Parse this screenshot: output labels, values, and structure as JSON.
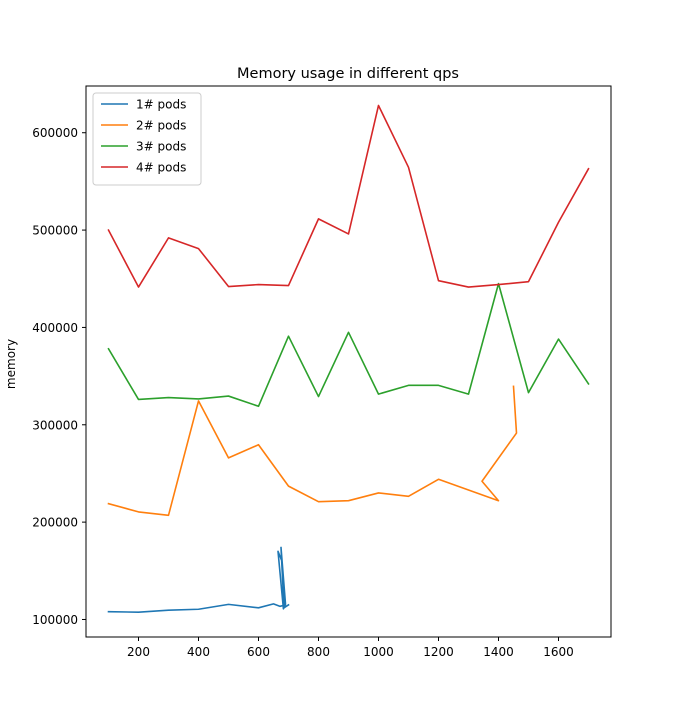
{
  "chart_data": {
    "type": "line",
    "title": "Memory usage in different qps",
    "xlabel": "",
    "ylabel": "memory",
    "xlim": [
      25,
      1775
    ],
    "ylim": [
      82000,
      648000
    ],
    "xticks": [
      200,
      400,
      600,
      800,
      1000,
      1200,
      1400,
      1600
    ],
    "yticks": [
      100000,
      200000,
      300000,
      400000,
      500000,
      600000
    ],
    "xtick_labels": [
      "200",
      "400",
      "600",
      "800",
      "1000",
      "1200",
      "1400",
      "1600"
    ],
    "ytick_labels": [
      "100000",
      "200000",
      "300000",
      "400000",
      "500000",
      "600000"
    ],
    "grid": false,
    "legend_position": "upper-left",
    "series": [
      {
        "name": "1# pods",
        "color": "#1f77b4",
        "points": [
          [
            100,
            108000
          ],
          [
            200,
            107500
          ],
          [
            300,
            109500
          ],
          [
            400,
            110500
          ],
          [
            500,
            115500
          ],
          [
            600,
            112000
          ],
          [
            650,
            116000
          ],
          [
            672,
            113500
          ],
          [
            690,
            115000
          ],
          [
            678,
            160000
          ],
          [
            665,
            170000
          ],
          [
            683,
            111000
          ],
          [
            690,
            116000
          ],
          [
            675,
            174000
          ],
          [
            685,
            112000
          ],
          [
            700,
            115000
          ]
        ]
      },
      {
        "name": "2# pods",
        "color": "#ff7f0e",
        "points": [
          [
            100,
            219000
          ],
          [
            200,
            210500
          ],
          [
            300,
            207000
          ],
          [
            400,
            324500
          ],
          [
            500,
            266000
          ],
          [
            600,
            279500
          ],
          [
            700,
            237000
          ],
          [
            800,
            221000
          ],
          [
            900,
            222000
          ],
          [
            1000,
            230000
          ],
          [
            1100,
            226500
          ],
          [
            1200,
            244000
          ],
          [
            1400,
            222000
          ],
          [
            1345,
            242000
          ],
          [
            1460,
            291500
          ],
          [
            1450,
            339500
          ]
        ]
      },
      {
        "name": "3# pods",
        "color": "#2ca02c",
        "points": [
          [
            100,
            378000
          ],
          [
            200,
            326000
          ],
          [
            300,
            328000
          ],
          [
            400,
            326500
          ],
          [
            500,
            329500
          ],
          [
            600,
            319000
          ],
          [
            700,
            391000
          ],
          [
            800,
            329000
          ],
          [
            900,
            395000
          ],
          [
            1000,
            331500
          ],
          [
            1100,
            340500
          ],
          [
            1200,
            340500
          ],
          [
            1300,
            331500
          ],
          [
            1400,
            445000
          ],
          [
            1500,
            333000
          ],
          [
            1600,
            388000
          ],
          [
            1700,
            342000
          ]
        ]
      },
      {
        "name": "4# pods",
        "color": "#d62728",
        "points": [
          [
            100,
            500000
          ],
          [
            200,
            441500
          ],
          [
            300,
            492000
          ],
          [
            400,
            481000
          ],
          [
            500,
            442000
          ],
          [
            600,
            444000
          ],
          [
            700,
            443000
          ],
          [
            800,
            511500
          ],
          [
            900,
            496000
          ],
          [
            1000,
            628000
          ],
          [
            1100,
            564500
          ],
          [
            1200,
            448000
          ],
          [
            1300,
            441500
          ],
          [
            1400,
            444000
          ],
          [
            1500,
            447000
          ],
          [
            1600,
            508000
          ],
          [
            1700,
            563000
          ]
        ]
      }
    ]
  }
}
